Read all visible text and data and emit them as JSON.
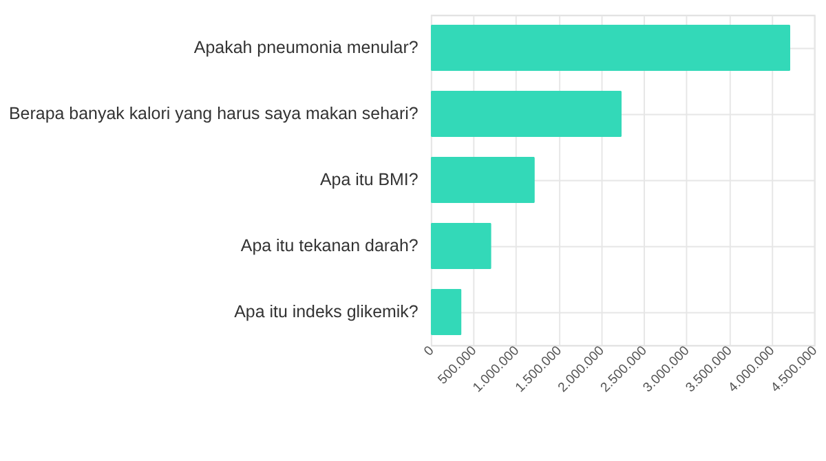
{
  "chart_data": {
    "type": "bar",
    "orientation": "horizontal",
    "categories": [
      "Apakah pneumonia menular?",
      "Berapa banyak kalori yang harus saya makan sehari?",
      "Apa itu BMI?",
      "Apa itu tekanan darah?",
      "Apa itu indeks glikemik?"
    ],
    "values": [
      4220000,
      2240000,
      1220000,
      710000,
      360000
    ],
    "color": "#33d9b8",
    "xlim": [
      0,
      4500000
    ],
    "xticks": [
      0,
      {
        "value": 500000,
        "label": "500.000"
      },
      {
        "value": 1000000,
        "label": "1.000.000"
      },
      {
        "value": 1500000,
        "label": "1.500.000"
      },
      {
        "value": 2000000,
        "label": "2.000.000"
      },
      {
        "value": 2500000,
        "label": "2.500.000"
      },
      {
        "value": 3000000,
        "label": "3.000.000"
      },
      {
        "value": 3500000,
        "label": "3.500.000"
      },
      {
        "value": 4000000,
        "label": "4.000.000"
      },
      {
        "value": 4500000,
        "label": "4.500.000"
      }
    ],
    "grid": true
  }
}
